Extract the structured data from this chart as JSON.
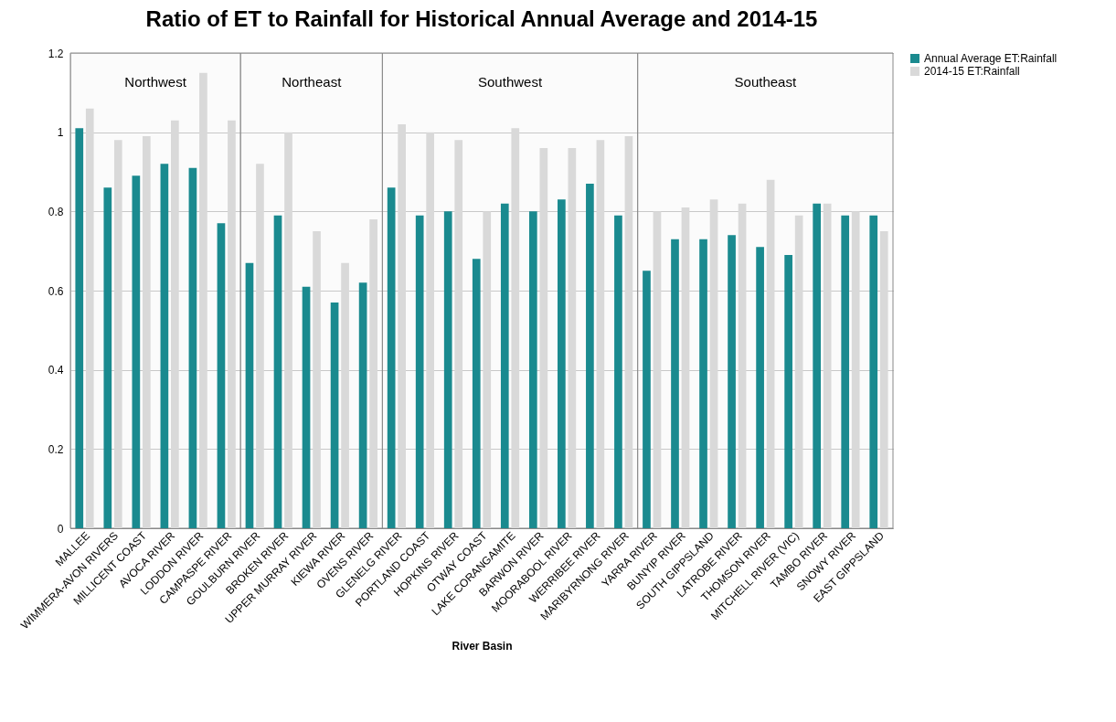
{
  "chart_data": {
    "type": "bar",
    "title": "Ratio of ET to Rainfall for Historical Annual Average and 2014-15",
    "xlabel": "River Basin",
    "categories": [
      "MALLEE",
      "WIMMERA-AVON RIVERS",
      "MILLICENT COAST",
      "AVOCA RIVER",
      "LODDON RIVER",
      "CAMPASPE RIVER",
      "GOULBURN RIVER",
      "BROKEN RIVER",
      "UPPER MURRAY RIVER",
      "KIEWA RIVER",
      "OVENS RIVER",
      "GLENELG RIVER",
      "PORTLAND COAST",
      "HOPKINS RIVER",
      "OTWAY COAST",
      "LAKE CORANGAMITE",
      "BARWON RIVER",
      "MOORABOOL RIVER",
      "WERRIBEE RIVER",
      "MARIBYRNONG RIVER",
      "YARRA RIVER",
      "BUNYIP RIVER",
      "SOUTH GIPPSLAND",
      "LATROBE RIVER",
      "THOMSON RIVER",
      "MITCHELL RIVER (VIC)",
      "TAMBO RIVER",
      "SNOWY RIVER",
      "EAST GIPPSLAND"
    ],
    "series": [
      {
        "name": "Annual Average ET:Rainfall",
        "color": "#1a8a8f",
        "values": [
          1.01,
          0.86,
          0.89,
          0.92,
          0.91,
          0.77,
          0.67,
          0.79,
          0.61,
          0.57,
          0.62,
          0.86,
          0.79,
          0.8,
          0.68,
          0.82,
          0.8,
          0.83,
          0.87,
          0.79,
          0.65,
          0.73,
          0.73,
          0.74,
          0.71,
          0.69,
          0.82,
          0.79,
          0.79
        ]
      },
      {
        "name": "2014-15 ET:Rainfall",
        "color": "#d9d9d9",
        "values": [
          1.06,
          0.98,
          0.99,
          1.03,
          1.15,
          1.03,
          0.92,
          1.0,
          0.75,
          0.67,
          0.78,
          1.02,
          1.0,
          0.98,
          0.8,
          1.01,
          0.96,
          0.96,
          0.98,
          0.99,
          0.8,
          0.81,
          0.83,
          0.82,
          0.88,
          0.79,
          0.82,
          0.8,
          0.75
        ]
      }
    ],
    "ylim": [
      0,
      1.2
    ],
    "yticks": [
      0,
      0.2,
      0.4,
      0.6,
      0.8,
      1,
      1.2
    ],
    "grid": "y",
    "legend": "right",
    "bands": [
      {
        "axis": "x",
        "from": "MALLEE",
        "to": "CAMPASPE RIVER",
        "label": "Northwest",
        "color": "#f8f8f8"
      },
      {
        "axis": "x",
        "from": "GOULBURN RIVER",
        "to": "OVENS RIVER",
        "label": "Northeast",
        "color": "#f8f8f8"
      },
      {
        "axis": "x",
        "from": "GLENELG RIVER",
        "to": "MARIBYRNONG RIVER",
        "label": "Southwest",
        "color": "#f8f8f8"
      },
      {
        "axis": "x",
        "from": "YARRA RIVER",
        "to": "EAST GIPPSLAND",
        "label": "Southeast",
        "color": "#f8f8f8"
      }
    ]
  }
}
